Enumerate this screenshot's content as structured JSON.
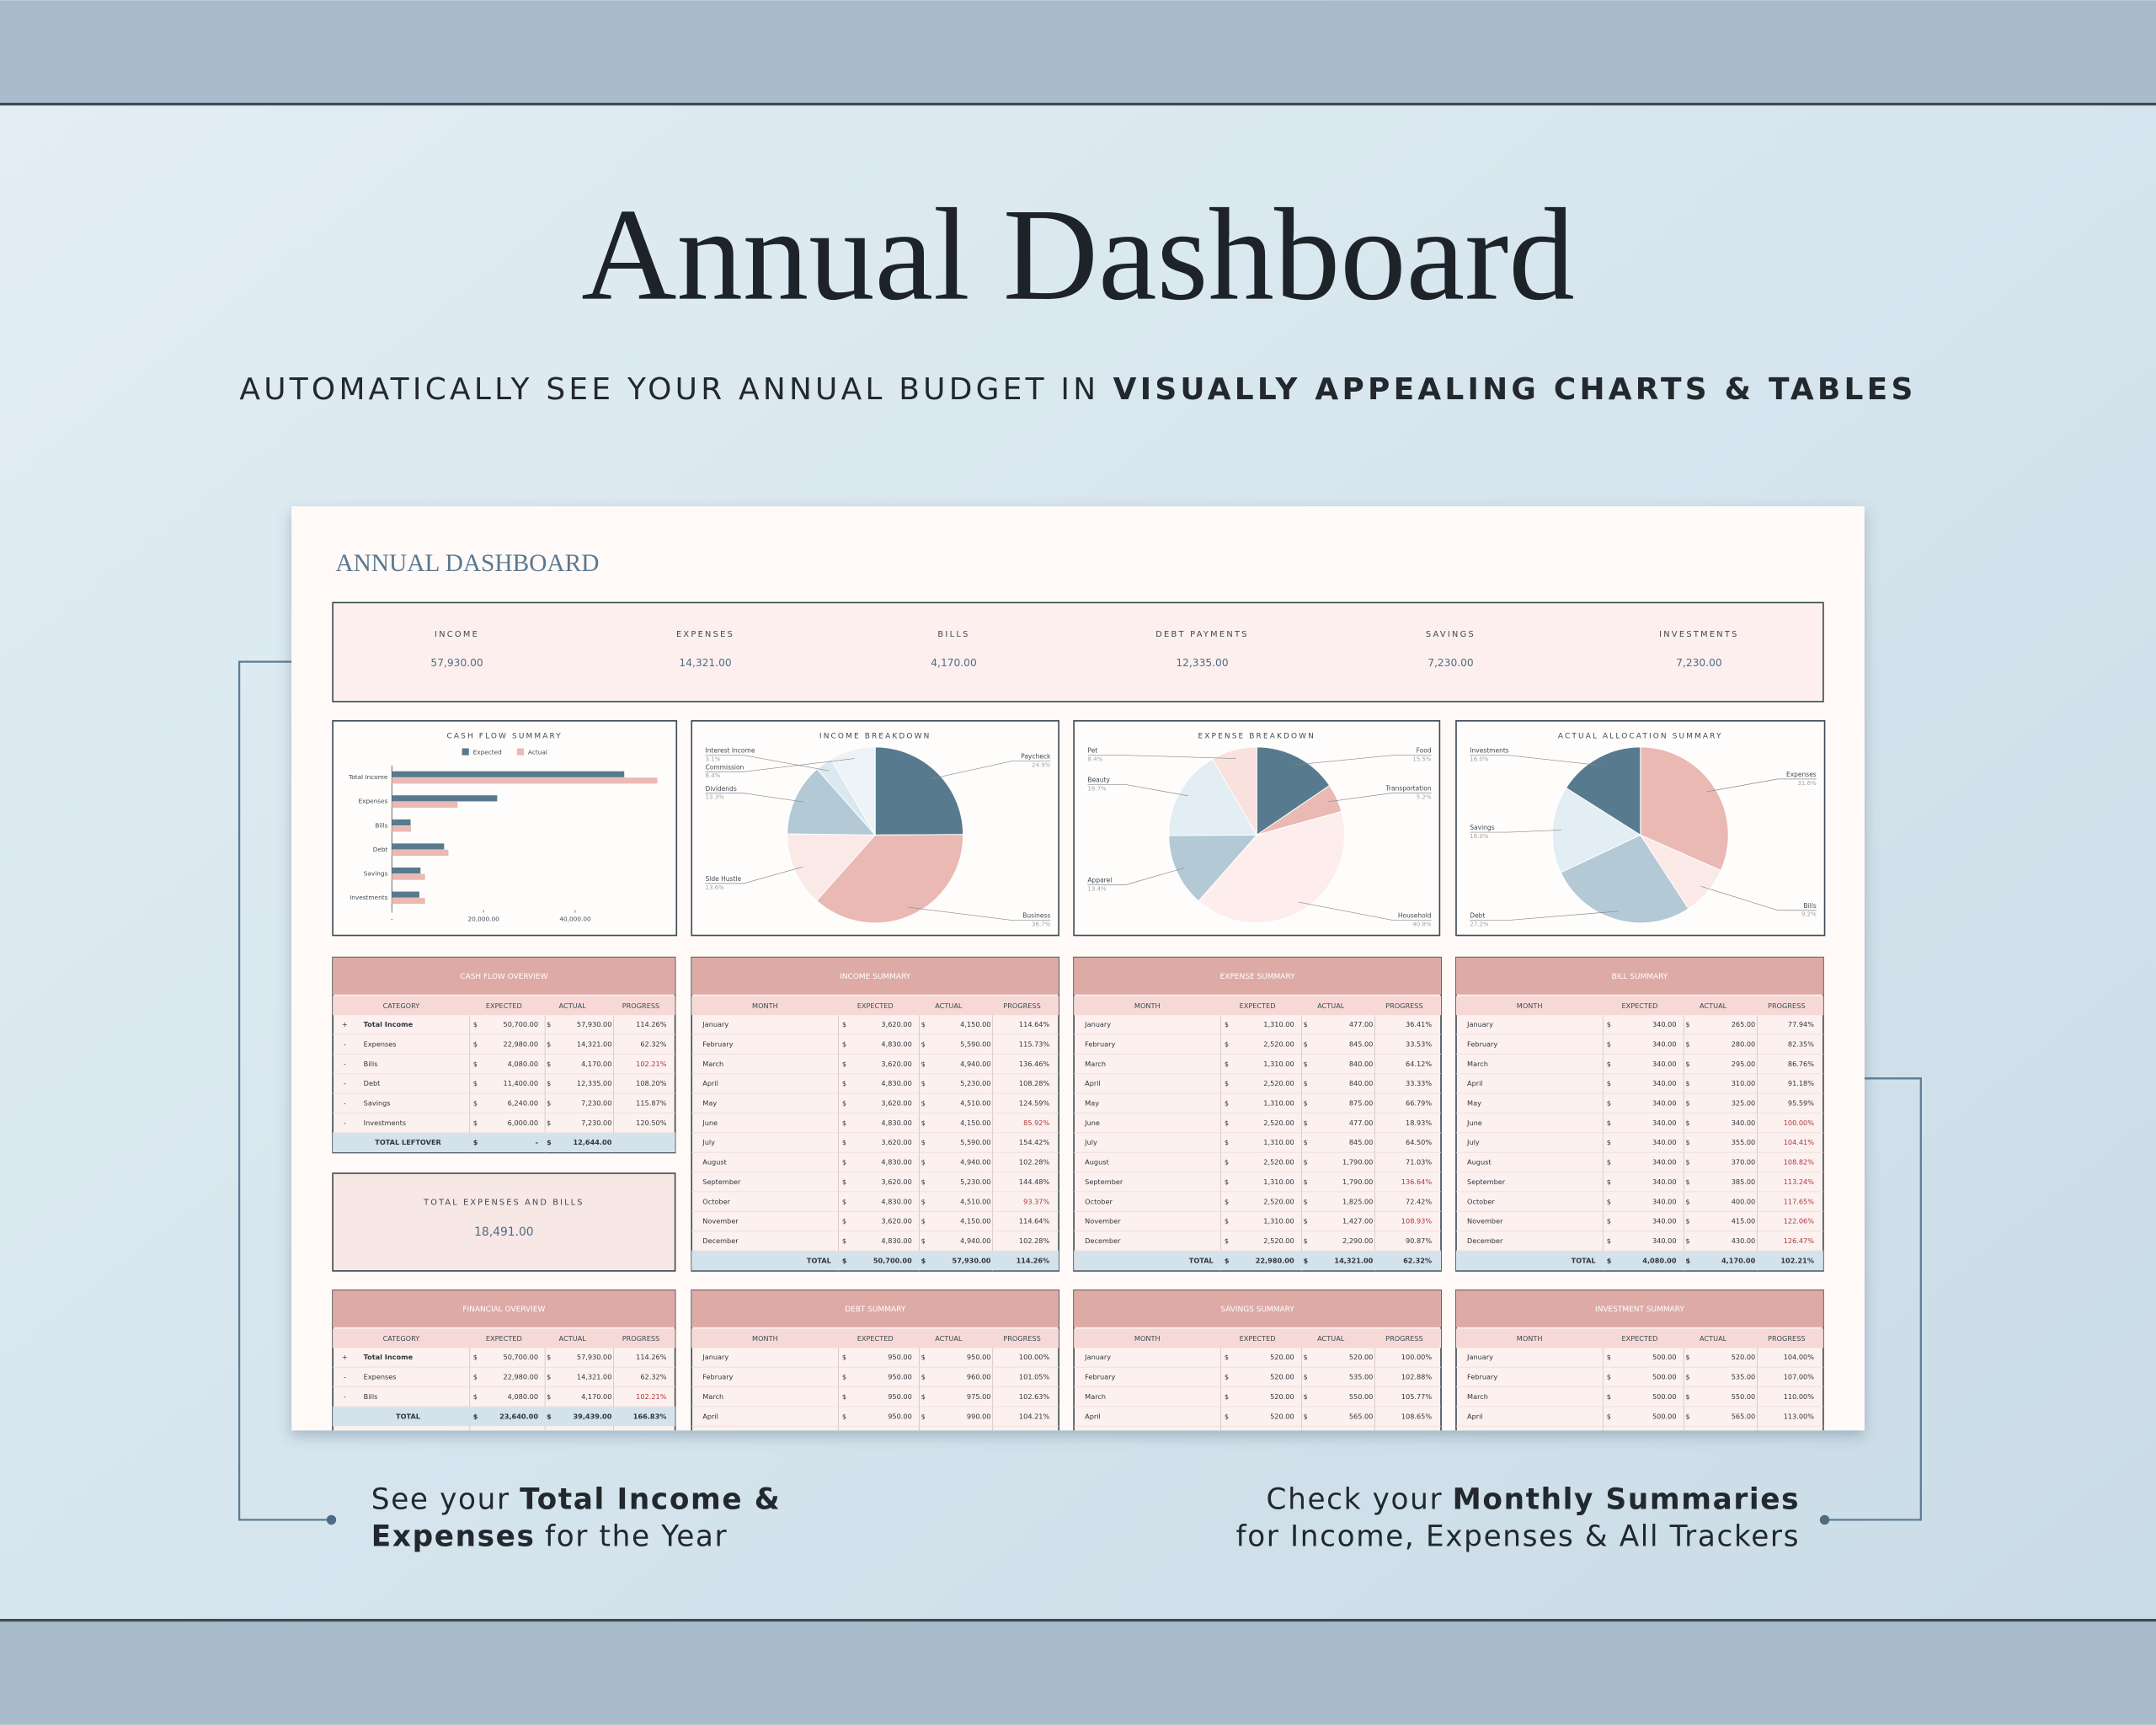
{
  "header": {
    "title": "Annual Dashboard",
    "subtitle": "AUTOMATICALLY SEE YOUR ANNUAL BUDGET IN",
    "subtitle_bold": "VISUALLY APPEALING CHARTS & TABLES"
  },
  "dashboard": {
    "title": "ANNUAL DASHBOARD",
    "kpis": [
      {
        "label": "INCOME",
        "value": "57,930.00"
      },
      {
        "label": "EXPENSES",
        "value": "14,321.00"
      },
      {
        "label": "BILLS",
        "value": "4,170.00"
      },
      {
        "label": "DEBT PAYMENTS",
        "value": "12,335.00"
      },
      {
        "label": "SAVINGS",
        "value": "7,230.00"
      },
      {
        "label": "INVESTMENTS",
        "value": "7,230.00"
      }
    ],
    "total_box": {
      "label": "TOTAL EXPENSES AND BILLS",
      "value": "18,491.00"
    },
    "tables": [
      {
        "title": "CASH FLOW OVERVIEW",
        "columns": [
          "CATEGORY",
          "EXPECTED",
          "ACTUAL",
          "PROGRESS"
        ],
        "rows": [
          [
            "+",
            "Total Income",
            "$",
            "50,700.00",
            "$",
            "57,930.00",
            "114.26%"
          ],
          [
            "-",
            "Expenses",
            "$",
            "22,980.00",
            "$",
            "14,321.00",
            "62.32%"
          ],
          [
            "-",
            "Bills",
            "$",
            "4,080.00",
            "$",
            "4,170.00",
            "102.21%"
          ],
          [
            "-",
            "Debt",
            "$",
            "11,400.00",
            "$",
            "12,335.00",
            "108.20%"
          ],
          [
            "-",
            "Savings",
            "$",
            "6,240.00",
            "$",
            "7,230.00",
            "115.87%"
          ],
          [
            "-",
            "Investments",
            "$",
            "6,000.00",
            "$",
            "7,230.00",
            "120.50%"
          ]
        ],
        "total": [
          "TOTAL LEFTOVER",
          "$",
          "-",
          "$",
          "12,644.00"
        ],
        "red_rows": [
          2
        ]
      },
      {
        "title": "INCOME SUMMARY",
        "columns": [
          "MONTH",
          "EXPECTED",
          "ACTUAL",
          "PROGRESS"
        ],
        "rows": [
          [
            "January",
            "$",
            "3,620.00",
            "$",
            "4,150.00",
            "114.64%"
          ],
          [
            "February",
            "$",
            "4,830.00",
            "$",
            "5,590.00",
            "115.73%"
          ],
          [
            "March",
            "$",
            "3,620.00",
            "$",
            "4,940.00",
            "136.46%"
          ],
          [
            "April",
            "$",
            "4,830.00",
            "$",
            "5,230.00",
            "108.28%"
          ],
          [
            "May",
            "$",
            "3,620.00",
            "$",
            "4,510.00",
            "124.59%"
          ],
          [
            "June",
            "$",
            "4,830.00",
            "$",
            "4,150.00",
            "85.92%"
          ],
          [
            "July",
            "$",
            "3,620.00",
            "$",
            "5,590.00",
            "154.42%"
          ],
          [
            "August",
            "$",
            "4,830.00",
            "$",
            "4,940.00",
            "102.28%"
          ],
          [
            "September",
            "$",
            "3,620.00",
            "$",
            "5,230.00",
            "144.48%"
          ],
          [
            "October",
            "$",
            "4,830.00",
            "$",
            "4,510.00",
            "93.37%"
          ],
          [
            "November",
            "$",
            "3,620.00",
            "$",
            "4,150.00",
            "114.64%"
          ],
          [
            "December",
            "$",
            "4,830.00",
            "$",
            "4,940.00",
            "102.28%"
          ]
        ],
        "total": [
          "TOTAL",
          "$",
          "50,700.00",
          "$",
          "57,930.00",
          "114.26%"
        ],
        "red_rows": [
          5,
          9
        ]
      },
      {
        "title": "EXPENSE SUMMARY",
        "columns": [
          "MONTH",
          "EXPECTED",
          "ACTUAL",
          "PROGRESS"
        ],
        "rows": [
          [
            "January",
            "$",
            "1,310.00",
            "$",
            "477.00",
            "36.41%"
          ],
          [
            "February",
            "$",
            "2,520.00",
            "$",
            "845.00",
            "33.53%"
          ],
          [
            "March",
            "$",
            "1,310.00",
            "$",
            "840.00",
            "64.12%"
          ],
          [
            "April",
            "$",
            "2,520.00",
            "$",
            "840.00",
            "33.33%"
          ],
          [
            "May",
            "$",
            "1,310.00",
            "$",
            "875.00",
            "66.79%"
          ],
          [
            "June",
            "$",
            "2,520.00",
            "$",
            "477.00",
            "18.93%"
          ],
          [
            "July",
            "$",
            "1,310.00",
            "$",
            "845.00",
            "64.50%"
          ],
          [
            "August",
            "$",
            "2,520.00",
            "$",
            "1,790.00",
            "71.03%"
          ],
          [
            "September",
            "$",
            "1,310.00",
            "$",
            "1,790.00",
            "136.64%"
          ],
          [
            "October",
            "$",
            "2,520.00",
            "$",
            "1,825.00",
            "72.42%"
          ],
          [
            "November",
            "$",
            "1,310.00",
            "$",
            "1,427.00",
            "108.93%"
          ],
          [
            "December",
            "$",
            "2,520.00",
            "$",
            "2,290.00",
            "90.87%"
          ]
        ],
        "total": [
          "TOTAL",
          "$",
          "22,980.00",
          "$",
          "14,321.00",
          "62.32%"
        ],
        "red_rows": [
          8,
          10
        ]
      },
      {
        "title": "BILL SUMMARY",
        "columns": [
          "MONTH",
          "EXPECTED",
          "ACTUAL",
          "PROGRESS"
        ],
        "rows": [
          [
            "January",
            "$",
            "340.00",
            "$",
            "265.00",
            "77.94%"
          ],
          [
            "February",
            "$",
            "340.00",
            "$",
            "280.00",
            "82.35%"
          ],
          [
            "March",
            "$",
            "340.00",
            "$",
            "295.00",
            "86.76%"
          ],
          [
            "April",
            "$",
            "340.00",
            "$",
            "310.00",
            "91.18%"
          ],
          [
            "May",
            "$",
            "340.00",
            "$",
            "325.00",
            "95.59%"
          ],
          [
            "June",
            "$",
            "340.00",
            "$",
            "340.00",
            "100.00%"
          ],
          [
            "July",
            "$",
            "340.00",
            "$",
            "355.00",
            "104.41%"
          ],
          [
            "August",
            "$",
            "340.00",
            "$",
            "370.00",
            "108.82%"
          ],
          [
            "September",
            "$",
            "340.00",
            "$",
            "385.00",
            "113.24%"
          ],
          [
            "October",
            "$",
            "340.00",
            "$",
            "400.00",
            "117.65%"
          ],
          [
            "November",
            "$",
            "340.00",
            "$",
            "415.00",
            "122.06%"
          ],
          [
            "December",
            "$",
            "340.00",
            "$",
            "430.00",
            "126.47%"
          ]
        ],
        "total": [
          "TOTAL",
          "$",
          "4,080.00",
          "$",
          "4,170.00",
          "102.21%"
        ],
        "red_rows": [
          5,
          6,
          7,
          8,
          9,
          10,
          11
        ]
      },
      {
        "title": "FINANCIAL OVERVIEW",
        "columns": [
          "CATEGORY",
          "EXPECTED",
          "ACTUAL",
          "PROGRESS"
        ],
        "rows": [
          [
            "+",
            "Total Income",
            "$",
            "50,700.00",
            "$",
            "57,930.00",
            "114.26%"
          ],
          [
            "-",
            "Expenses",
            "$",
            "22,980.00",
            "$",
            "14,321.00",
            "62.32%"
          ],
          [
            "-",
            "Bills",
            "$",
            "4,080.00",
            "$",
            "4,170.00",
            "102.21%"
          ]
        ],
        "total": [
          "TOTAL",
          "$",
          "23,640.00",
          "$",
          "39,439.00",
          "166.83%"
        ],
        "red_rows": [
          2
        ]
      },
      {
        "title": "DEBT SUMMARY",
        "columns": [
          "MONTH",
          "EXPECTED",
          "ACTUAL",
          "PROGRESS"
        ],
        "rows": [
          [
            "January",
            "$",
            "950.00",
            "$",
            "950.00",
            "100.00%"
          ],
          [
            "February",
            "$",
            "950.00",
            "$",
            "960.00",
            "101.05%"
          ],
          [
            "March",
            "$",
            "950.00",
            "$",
            "975.00",
            "102.63%"
          ],
          [
            "April",
            "$",
            "950.00",
            "$",
            "990.00",
            "104.21%"
          ]
        ],
        "red_rows": []
      },
      {
        "title": "SAVINGS SUMMARY",
        "columns": [
          "MONTH",
          "EXPECTED",
          "ACTUAL",
          "PROGRESS"
        ],
        "rows": [
          [
            "January",
            "$",
            "520.00",
            "$",
            "520.00",
            "100.00%"
          ],
          [
            "February",
            "$",
            "520.00",
            "$",
            "535.00",
            "102.88%"
          ],
          [
            "March",
            "$",
            "520.00",
            "$",
            "550.00",
            "105.77%"
          ],
          [
            "April",
            "$",
            "520.00",
            "$",
            "565.00",
            "108.65%"
          ]
        ],
        "red_rows": []
      },
      {
        "title": "INVESTMENT SUMMARY",
        "columns": [
          "MONTH",
          "EXPECTED",
          "ACTUAL",
          "PROGRESS"
        ],
        "rows": [
          [
            "January",
            "$",
            "500.00",
            "$",
            "520.00",
            "104.00%"
          ],
          [
            "February",
            "$",
            "500.00",
            "$",
            "535.00",
            "107.00%"
          ],
          [
            "March",
            "$",
            "500.00",
            "$",
            "550.00",
            "110.00%"
          ],
          [
            "April",
            "$",
            "500.00",
            "$",
            "565.00",
            "113.00%"
          ]
        ],
        "red_rows": []
      }
    ]
  },
  "chart_data": [
    {
      "type": "bar",
      "orientation": "horizontal",
      "title": "CASH FLOW SUMMARY",
      "categories": [
        "Total Income",
        "Expenses",
        "Bills",
        "Debt",
        "Savings",
        "Investments"
      ],
      "series": [
        {
          "name": "Expected",
          "color": "#587a8e",
          "values": [
            50700,
            22980,
            4080,
            11400,
            6240,
            6000
          ]
        },
        {
          "name": "Actual",
          "color": "#eab9b4",
          "values": [
            57930,
            14321,
            4170,
            12335,
            7230,
            7230
          ]
        }
      ],
      "xlim": [
        0,
        60000
      ],
      "xticks": [
        {
          "value": 0,
          "label": "-"
        },
        {
          "value": 20000,
          "label": "20,000.00"
        },
        {
          "value": 40000,
          "label": "40,000.00"
        }
      ],
      "legend": "top"
    },
    {
      "type": "pie",
      "title": "INCOME BREAKDOWN",
      "categories": [
        "Paycheck",
        "Business",
        "Side Hustle",
        "Dividends",
        "Interest Income",
        "Commission"
      ],
      "values": [
        24.9,
        36.7,
        13.6,
        13.3,
        3.1,
        8.4
      ],
      "value_labels": [
        "24.9%",
        "36.7%",
        "13.6%",
        "13.3%",
        "3.1%",
        "8.4%"
      ],
      "colors": [
        "#587a8e",
        "#eab9b4",
        "#fbe9e7",
        "#b4c9d6",
        "#dbe8f0",
        "#edf3f7"
      ]
    },
    {
      "type": "pie",
      "title": "EXPENSE BREAKDOWN",
      "categories": [
        "Food",
        "Transportation",
        "Household",
        "Apparel",
        "Beauty",
        "Pet"
      ],
      "values": [
        15.5,
        5.2,
        40.8,
        13.4,
        16.7,
        8.4
      ],
      "value_labels": [
        "15.5%",
        "5.2%",
        "40.8%",
        "13.4%",
        "16.7%",
        "8.4%"
      ],
      "colors": [
        "#587a8e",
        "#eab9b4",
        "#fdeeed",
        "#b4c9d6",
        "#e2edf4",
        "#f9e1de"
      ]
    },
    {
      "type": "pie",
      "title": "ACTUAL ALLOCATION SUMMARY",
      "categories": [
        "Expenses",
        "Bills",
        "Debt",
        "Savings",
        "Investments"
      ],
      "values": [
        31.6,
        9.2,
        27.2,
        16.0,
        16.0
      ],
      "value_labels": [
        "31.6%",
        "9.2%",
        "27.2%",
        "16.0%",
        "16.0%"
      ],
      "colors": [
        "#eab9b4",
        "#fbe9e7",
        "#b4c9d6",
        "#e2edf4",
        "#587a8e"
      ]
    }
  ],
  "callouts": [
    {
      "lines": [
        [
          {
            "text": "See your"
          },
          {
            "text": "Total Income &",
            "bold": true
          }
        ],
        [
          {
            "text": "Expenses",
            "bold": true
          },
          {
            "text": "for the Year"
          }
        ]
      ]
    },
    {
      "lines": [
        [
          {
            "text": "Check your"
          },
          {
            "text": "Monthly Summaries",
            "bold": true
          }
        ],
        [
          {
            "text": "for Income, Expenses & All Trackers"
          }
        ]
      ]
    }
  ]
}
